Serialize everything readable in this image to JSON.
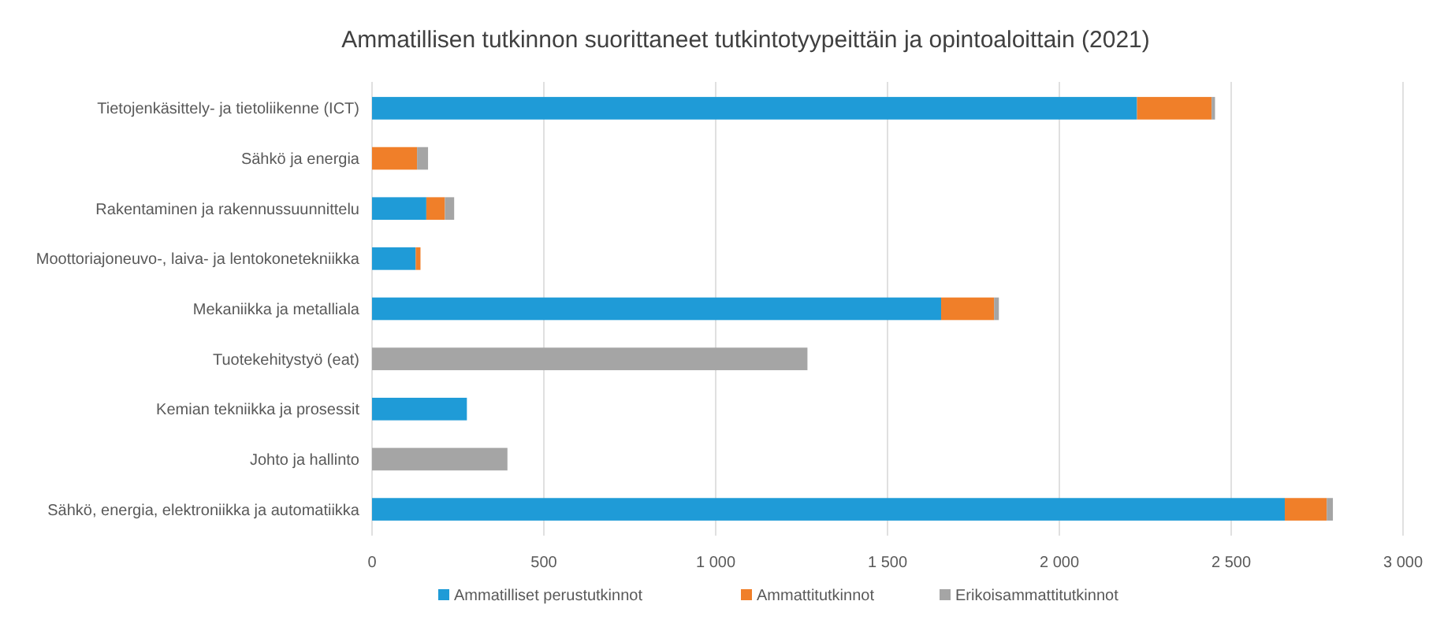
{
  "chart_data": {
    "type": "bar",
    "orientation": "horizontal",
    "stacked": true,
    "title": "Ammatillisen tutkinnon suorittaneet tutkintotyypeittäin ja opintoaloittain (2021)",
    "categories": [
      "Tietojenkäsittely- ja tietoliikenne (ICT)",
      "Sähkö ja energia",
      "Rakentaminen ja rakennussuunnittelu",
      "Moottoriajoneuvo-, laiva- ja lentokonetekniikka",
      "Mekaniikka ja metalliala",
      "Tuotekehitystyö (eat)",
      "Kemian tekniikka ja prosessit",
      "Johto ja hallinto",
      "Sähkö, energia, elektroniikka ja automatiikka"
    ],
    "series": [
      {
        "name": "Ammatilliset perustutkinnot",
        "color": "#1f9bd7",
        "values": [
          2226,
          0,
          158,
          127,
          1656,
          0,
          276,
          0,
          2656
        ]
      },
      {
        "name": "Ammattitutkinnot",
        "color": "#f07f29",
        "values": [
          217,
          131,
          54,
          14,
          154,
          0,
          0,
          0,
          122
        ]
      },
      {
        "name": "Erikoisammattitutkinnot",
        "color": "#a5a5a5",
        "values": [
          10,
          32,
          27,
          0,
          14,
          1267,
          0,
          394,
          18
        ]
      }
    ],
    "xlim": [
      0,
      3000
    ],
    "xticks": [
      0,
      500,
      {
        "value": 1000,
        "label": "1 000"
      },
      {
        "value": 1500,
        "label": "1 500"
      },
      {
        "value": 2000,
        "label": "2 000"
      },
      {
        "value": 2500,
        "label": "2 500"
      },
      {
        "value": 3000,
        "label": "3 000"
      }
    ],
    "grid": "x",
    "legend": "bottom"
  }
}
